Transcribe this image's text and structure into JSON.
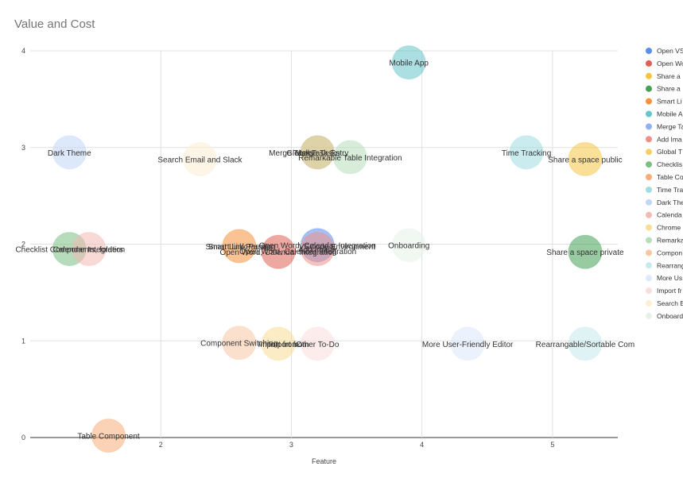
{
  "chart_data": {
    "type": "scatter",
    "title": "Value and Cost",
    "xlabel": "Feature",
    "ylabel": "",
    "xlim": [
      1.0,
      5.5
    ],
    "ylim": [
      0,
      4
    ],
    "xticks": [
      "2",
      "3",
      "4",
      "5"
    ],
    "yticks": [
      "0",
      "1",
      "2",
      "3",
      "4"
    ],
    "grid": true,
    "legend_position": "right",
    "series": [
      {
        "name": "Open VS",
        "label": "Open Word, Calendar Integration",
        "x": 3.2,
        "y": 1.99,
        "color": "#5b8def"
      },
      {
        "name": "Open Wo",
        "label": "Open Word, Calendar Integration",
        "x": 2.9,
        "y": 1.92,
        "color": "#e06055"
      },
      {
        "name": "Share a",
        "label": "Share a space public",
        "x": 5.25,
        "y": 2.88,
        "color": "#f4c542"
      },
      {
        "name": "Share a",
        "label": "Share a space private",
        "x": 5.25,
        "y": 1.92,
        "color": "#45a055"
      },
      {
        "name": "Smart Li",
        "label": "Smart Link Parsing",
        "x": 2.6,
        "y": 1.98,
        "color": "#f7913d"
      },
      {
        "name": "Mobile A",
        "label": "Mobile App",
        "x": 3.9,
        "y": 3.88,
        "color": "#67c5cb"
      },
      {
        "name": "Merge Ta",
        "label": "Merge Tasks",
        "x": 3.2,
        "y": 2.95,
        "color": "#8fb3f1"
      },
      {
        "name": "Add Ima",
        "label": "Add Image",
        "x": 3.2,
        "y": 1.95,
        "color": "#ef8f87"
      },
      {
        "name": "Global T",
        "label": "Global Task Entry",
        "x": 3.2,
        "y": 2.95,
        "color": "#f6cf6a"
      },
      {
        "name": "Checklis",
        "label": "Checklist Components, folders",
        "x": 1.3,
        "y": 1.95,
        "color": "#7cbf85"
      },
      {
        "name": "Table Co",
        "label": "Table Component",
        "x": 1.6,
        "y": 0.02,
        "color": "#f8ad78"
      },
      {
        "name": "Time Tra",
        "label": "Time Tracking",
        "x": 4.8,
        "y": 2.95,
        "color": "#9fdde0"
      },
      {
        "name": "Dark The",
        "label": "Dark Theme",
        "x": 1.3,
        "y": 2.95,
        "color": "#c3d6f7"
      },
      {
        "name": "Calenda",
        "label": "Calendar Integration",
        "x": 1.45,
        "y": 1.95,
        "color": "#f3b9b4"
      },
      {
        "name": "Chrome",
        "label": "Import from",
        "x": 2.9,
        "y": 0.97,
        "color": "#f9dc96"
      },
      {
        "name": "Remarka",
        "label": "Remarkable Table Integration",
        "x": 3.45,
        "y": 2.9,
        "color": "#b6dfbc"
      },
      {
        "name": "Compon",
        "label": "Component Switching",
        "x": 2.6,
        "y": 0.98,
        "color": "#f9c7a6"
      },
      {
        "name": "Rearrang",
        "label": "Rearrangable/Sortable Com",
        "x": 5.25,
        "y": 0.97,
        "color": "#c5eaec"
      },
      {
        "name": "More Us",
        "label": "More User-Friendly Editor",
        "x": 4.35,
        "y": 0.97,
        "color": "#dde8fb"
      },
      {
        "name": "Import fr",
        "label": "Other To-Do",
        "x": 3.2,
        "y": 0.97,
        "color": "#f9dfdc"
      },
      {
        "name": "Search E",
        "label": "Search Email and Slack",
        "x": 2.3,
        "y": 2.88,
        "color": "#fcefd2"
      },
      {
        "name": "Onboard",
        "label": "Onboarding",
        "x": 3.9,
        "y": 1.99,
        "color": "#e5f2e7"
      }
    ],
    "extra_labels": [
      {
        "text": "Merge Tasks",
        "x": 3.0,
        "y": 2.95
      },
      {
        "text": "Smart Link Parsing",
        "x": 2.62,
        "y": 1.98
      },
      {
        "text": "VSCode Environment",
        "x": 3.35,
        "y": 1.98
      },
      {
        "text": "Import from",
        "x": 2.98,
        "y": 0.97
      },
      {
        "text": "Open Word, Calendar Integration",
        "x": 3.05,
        "y": 1.93
      }
    ]
  }
}
